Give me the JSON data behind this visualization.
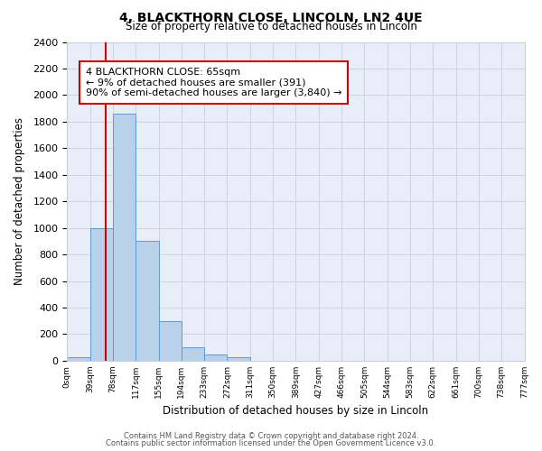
{
  "title": "4, BLACKTHORN CLOSE, LINCOLN, LN2 4UE",
  "subtitle": "Size of property relative to detached houses in Lincoln",
  "xlabel": "Distribution of detached houses by size in Lincoln",
  "ylabel": "Number of detached properties",
  "bin_labels": [
    "0sqm",
    "39sqm",
    "78sqm",
    "117sqm",
    "155sqm",
    "194sqm",
    "233sqm",
    "272sqm",
    "311sqm",
    "350sqm",
    "389sqm",
    "427sqm",
    "466sqm",
    "505sqm",
    "544sqm",
    "583sqm",
    "622sqm",
    "661sqm",
    "700sqm",
    "738sqm",
    "777sqm"
  ],
  "bar_values": [
    25,
    1000,
    1860,
    900,
    300,
    100,
    45,
    25,
    0,
    0,
    0,
    0,
    0,
    0,
    0,
    0,
    0,
    0,
    0,
    0
  ],
  "bar_color": "#b8d0ea",
  "bar_edge_color": "#5b9bd5",
  "background_color": "#e8eef8",
  "grid_color": "#c8d0dc",
  "red_line_x": 1.67,
  "ylim": [
    0,
    2400
  ],
  "yticks": [
    0,
    200,
    400,
    600,
    800,
    1000,
    1200,
    1400,
    1600,
    1800,
    2000,
    2200,
    2400
  ],
  "annotation_title": "4 BLACKTHORN CLOSE: 65sqm",
  "annotation_line1": "← 9% of detached houses are smaller (391)",
  "annotation_line2": "90% of semi-detached houses are larger (3,840) →",
  "annotation_box_color": "#ffffff",
  "annotation_box_edge": "#cc0000",
  "footer1": "Contains HM Land Registry data © Crown copyright and database right 2024.",
  "footer2": "Contains public sector information licensed under the Open Government Licence v3.0."
}
